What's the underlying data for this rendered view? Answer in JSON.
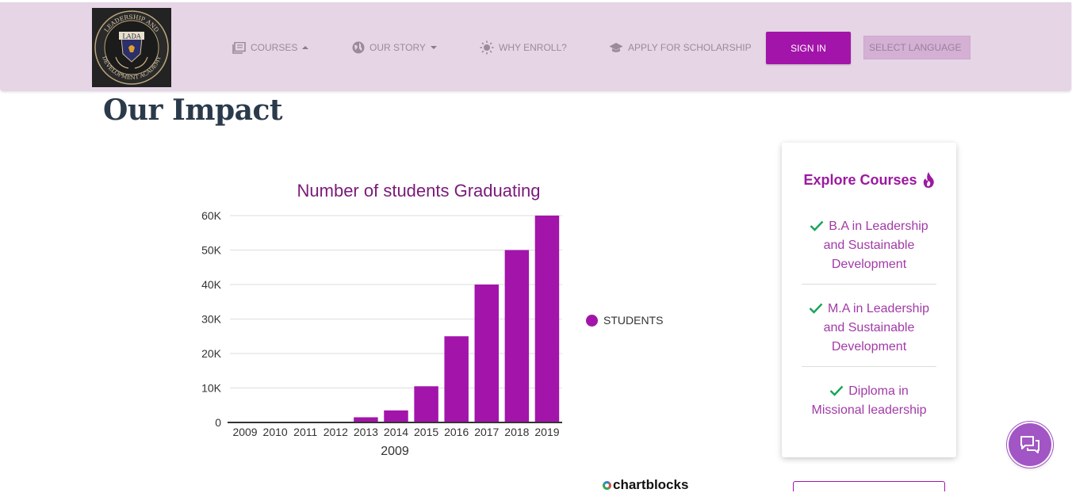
{
  "header": {
    "logo_text": "LEADERSHIP AND DEVELOPMENT ACADEMY",
    "logo_abbr": "LADA",
    "nav": [
      {
        "label": "COURSES",
        "icon": "book-icon",
        "caret": "up"
      },
      {
        "label": "OUR STORY",
        "icon": "globe-icon",
        "caret": "down"
      },
      {
        "label": "WHY ENROLL?",
        "icon": "sun-icon"
      },
      {
        "label": "APPLY FOR SCHOLARSHIP",
        "icon": "graduation-cap-icon"
      }
    ],
    "signin_label": "SIGN IN",
    "language_placeholder": "SELECT LANGUAGE"
  },
  "page": {
    "title": "Our Impact"
  },
  "chart_data": {
    "type": "bar",
    "title": "Number of students Graduating",
    "xlabel": "2009",
    "ylabel": "",
    "categories": [
      "2009",
      "2010",
      "2011",
      "2012",
      "2013",
      "2014",
      "2015",
      "2016",
      "2017",
      "2018",
      "2019"
    ],
    "series": [
      {
        "name": "STUDENTS",
        "values": [
          0,
          0,
          0,
          100,
          1500,
          3500,
          10500,
          25000,
          40000,
          50000,
          60000
        ]
      }
    ],
    "ylim": [
      0,
      60000
    ],
    "yticks": [
      0,
      10000,
      20000,
      30000,
      40000,
      50000,
      60000
    ],
    "ytick_labels": [
      "0",
      "10K",
      "20K",
      "30K",
      "40K",
      "50K",
      "60K"
    ],
    "grid": true,
    "legend_position": "right",
    "colors": {
      "bar": "#a314aa"
    }
  },
  "chart_credit": "chartblocks",
  "sidebar_card": {
    "title": "Explore Courses",
    "title_icon": "fire-icon",
    "courses": [
      {
        "label": "B.A in Leadership and Sustainable Development"
      },
      {
        "label": "M.A in Leadership and Sustainable Development"
      },
      {
        "label": "Diploma in Missional leadership"
      }
    ]
  },
  "colors": {
    "accent": "#a314aa",
    "header_bg": "#e5d5e5",
    "check": "#1aa35a"
  },
  "chat_icon": "chat-icon"
}
